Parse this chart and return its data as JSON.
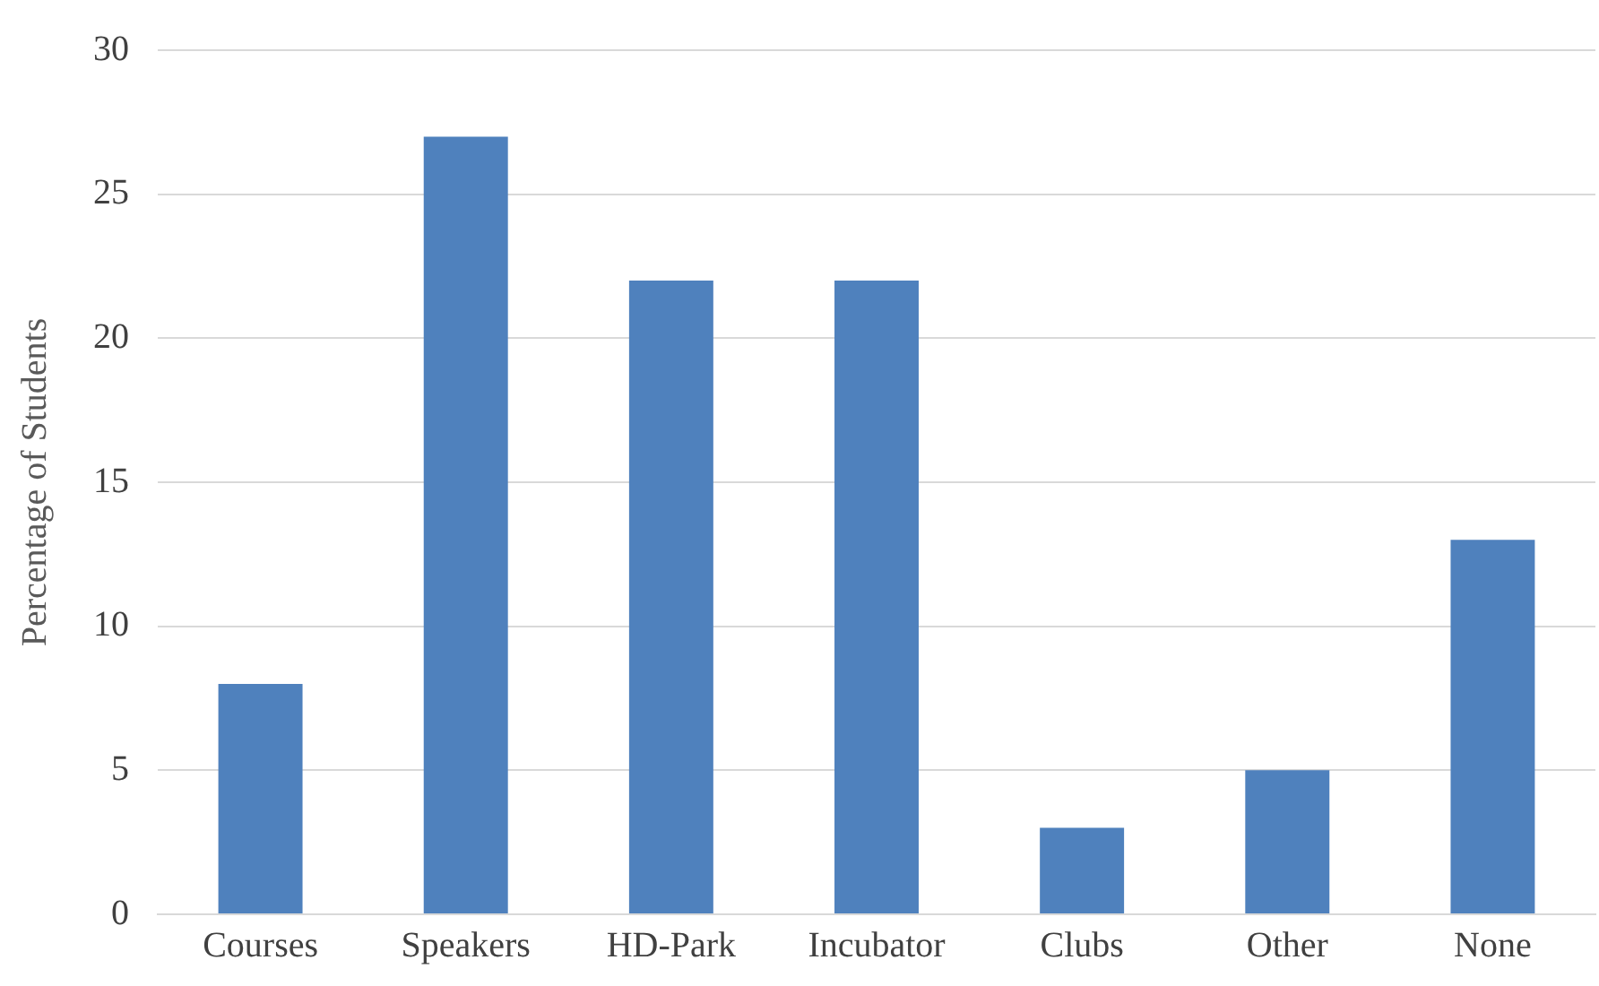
{
  "chart_data": {
    "type": "bar",
    "ylabel": "Percentage of Students",
    "categories": [
      "Courses",
      "Speakers",
      "HD-Park",
      "Incubator",
      "Clubs",
      "Other",
      "None"
    ],
    "values": [
      8,
      27,
      22,
      22,
      3,
      5,
      13
    ],
    "color": "#4f81bd",
    "ylim": [
      0,
      30
    ],
    "yticks": [
      0,
      5,
      10,
      15,
      20,
      25,
      30
    ],
    "grid": "y",
    "legend": false
  }
}
